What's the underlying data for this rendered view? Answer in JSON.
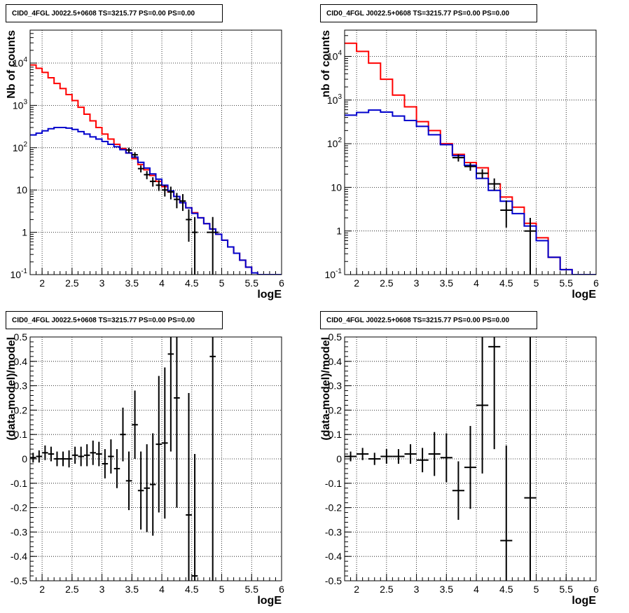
{
  "panel_title": "CID0_4FGL J0022.5+0608 TS=3215.77 PS=0.00 PS=0.00",
  "colors": {
    "model_total": "#ff0000",
    "model_bkg": "#0000cc",
    "data": "#000000",
    "grid": "#000000"
  },
  "chart_data": [
    {
      "type": "line",
      "title": "CID0_4FGL J0022.5+0608 TS=3215.77 PS=0.00 PS=0.00",
      "xlabel": "logE",
      "ylabel": "Nb of counts",
      "log_y": true,
      "xlim": [
        1.8,
        6.0
      ],
      "ylim": [
        0.1,
        60000
      ],
      "xticks": [
        "2",
        "2.5",
        "3",
        "3.5",
        "4",
        "4.5",
        "5",
        "5.5",
        "6"
      ],
      "yticks": [
        "10^-1",
        "1",
        "10",
        "10^2",
        "10^3",
        "10^4"
      ],
      "grid": true,
      "bin_edges": [
        1.8,
        1.9,
        2.0,
        2.1,
        2.2,
        2.3,
        2.4,
        2.5,
        2.6,
        2.7,
        2.8,
        2.9,
        3.0,
        3.1,
        3.2,
        3.3,
        3.4,
        3.5,
        3.6,
        3.7,
        3.8,
        3.9,
        4.0,
        4.1,
        4.2,
        4.3,
        4.4,
        4.5,
        4.6,
        4.7,
        4.8,
        4.9,
        5.0,
        5.1,
        5.2,
        5.3,
        5.4,
        5.5,
        5.6,
        5.7,
        5.8,
        5.9,
        6.0
      ],
      "series": [
        {
          "values": [
            9000,
            7500,
            6000,
            4500,
            3300,
            2500,
            1800,
            1300,
            900,
            620,
            430,
            300,
            210,
            160,
            120,
            95,
            75,
            55,
            40,
            30,
            22,
            16,
            12,
            9,
            7,
            5,
            3.8,
            2.9,
            2.2,
            1.6,
            1.2,
            0.9,
            0.65,
            0.45,
            0.32,
            0.22,
            0.15,
            0.11,
            0.1,
            0.1,
            0.1,
            0.1
          ]
        },
        {
          "values": [
            200,
            220,
            250,
            280,
            300,
            300,
            290,
            270,
            240,
            210,
            180,
            160,
            140,
            120,
            105,
            90,
            75,
            60,
            45,
            33,
            24,
            18,
            13,
            9.5,
            7,
            5,
            3.8,
            2.8,
            2.2,
            1.6,
            1.2,
            0.9,
            0.65,
            0.45,
            0.32,
            0.22,
            0.15,
            0.11,
            0.1,
            0.1,
            0.1,
            0.1
          ]
        }
      ],
      "points": [
        {
          "x": 3.45,
          "y": 88,
          "ylo": 75,
          "yhi": 100
        },
        {
          "x": 3.55,
          "y": 68,
          "ylo": 58,
          "yhi": 78
        },
        {
          "x": 3.65,
          "y": 32,
          "ylo": 26,
          "yhi": 38
        },
        {
          "x": 3.75,
          "y": 23,
          "ylo": 18,
          "yhi": 28
        },
        {
          "x": 3.85,
          "y": 16,
          "ylo": 12,
          "yhi": 20
        },
        {
          "x": 3.95,
          "y": 13,
          "ylo": 9.5,
          "yhi": 17
        },
        {
          "x": 4.05,
          "y": 10,
          "ylo": 7,
          "yhi": 13
        },
        {
          "x": 4.15,
          "y": 9,
          "ylo": 6,
          "yhi": 12
        },
        {
          "x": 4.25,
          "y": 6,
          "ylo": 3.7,
          "yhi": 8.5
        },
        {
          "x": 4.35,
          "y": 5.5,
          "ylo": 3.2,
          "yhi": 8
        },
        {
          "x": 4.45,
          "y": 2,
          "ylo": 0.6,
          "yhi": 3.5
        },
        {
          "x": 4.55,
          "y": 1,
          "ylo": 0.1,
          "yhi": 2.3
        },
        {
          "x": 4.85,
          "y": 1,
          "ylo": 0.1,
          "yhi": 2.3
        }
      ]
    },
    {
      "type": "line",
      "title": "CID0_4FGL J0022.5+0608 TS=3215.77 PS=0.00 PS=0.00",
      "xlabel": "logE",
      "ylabel": "nb of counts",
      "log_y": true,
      "xlim": [
        1.8,
        6.0
      ],
      "ylim": [
        0.1,
        40000
      ],
      "xticks": [
        "2",
        "2.5",
        "3",
        "3.5",
        "4",
        "4.5",
        "5",
        "5.5",
        "6"
      ],
      "yticks": [
        "10^-1",
        "1",
        "10",
        "10^2",
        "10^3",
        "10^4"
      ],
      "grid": true,
      "bin_edges": [
        1.8,
        2.0,
        2.2,
        2.4,
        2.6,
        2.8,
        3.0,
        3.2,
        3.4,
        3.6,
        3.8,
        4.0,
        4.2,
        4.4,
        4.6,
        4.8,
        5.0,
        5.2,
        5.4,
        5.6,
        5.8,
        6.0
      ],
      "series": [
        {
          "values": [
            20000,
            13000,
            7000,
            3000,
            1300,
            700,
            320,
            200,
            100,
            57,
            37,
            28,
            12,
            6,
            3.5,
            1.5,
            0.7,
            0.25,
            0.13,
            0.1,
            0.1
          ]
        },
        {
          "values": [
            450,
            520,
            590,
            530,
            430,
            340,
            250,
            160,
            95,
            53,
            32,
            16,
            8.5,
            4.8,
            2.5,
            1.3,
            0.6,
            0.25,
            0.13,
            0.1,
            0.1
          ]
        }
      ],
      "points": [
        {
          "x": 3.7,
          "y": 48,
          "ylo": 39,
          "yhi": 57
        },
        {
          "x": 3.9,
          "y": 30,
          "ylo": 24,
          "yhi": 36
        },
        {
          "x": 4.1,
          "y": 21,
          "ylo": 16,
          "yhi": 26
        },
        {
          "x": 4.3,
          "y": 12,
          "ylo": 8.5,
          "yhi": 16
        },
        {
          "x": 4.5,
          "y": 3,
          "ylo": 1.2,
          "yhi": 5
        },
        {
          "x": 4.9,
          "y": 1,
          "ylo": 0.1,
          "yhi": 2
        }
      ]
    },
    {
      "type": "scatter",
      "title": "CID0_4FGL J0022.5+0608 TS=3215.77 PS=0.00 PS=0.00",
      "xlabel": "logE",
      "ylabel": "(data-model)/model",
      "log_y": false,
      "xlim": [
        1.8,
        6.0
      ],
      "ylim": [
        -0.5,
        0.5
      ],
      "xticks": [
        "2",
        "2.5",
        "3",
        "3.5",
        "4",
        "4.5",
        "5",
        "5.5",
        "6"
      ],
      "yticks": [
        "-0.5",
        "-0.4",
        "-0.3",
        "-0.2",
        "-0.1",
        "0",
        "0.1",
        "0.2",
        "0.3",
        "0.4",
        "0.5"
      ],
      "grid": true,
      "points": [
        {
          "x": 1.85,
          "y": 0.005,
          "err": 0.02,
          "xerr": 0.05
        },
        {
          "x": 1.95,
          "y": 0.01,
          "err": 0.025,
          "xerr": 0.05
        },
        {
          "x": 2.05,
          "y": 0.025,
          "err": 0.03,
          "xerr": 0.05
        },
        {
          "x": 2.15,
          "y": 0.02,
          "err": 0.03,
          "xerr": 0.05
        },
        {
          "x": 2.25,
          "y": 0.0,
          "err": 0.03,
          "xerr": 0.05
        },
        {
          "x": 2.35,
          "y": 0.0,
          "err": 0.03,
          "xerr": 0.05
        },
        {
          "x": 2.45,
          "y": 0.0,
          "err": 0.035,
          "xerr": 0.05
        },
        {
          "x": 2.55,
          "y": 0.015,
          "err": 0.035,
          "xerr": 0.05
        },
        {
          "x": 2.65,
          "y": 0.01,
          "err": 0.04,
          "xerr": 0.05
        },
        {
          "x": 2.75,
          "y": 0.015,
          "err": 0.045,
          "xerr": 0.05
        },
        {
          "x": 2.85,
          "y": 0.025,
          "err": 0.05,
          "xerr": 0.05
        },
        {
          "x": 2.95,
          "y": 0.02,
          "err": 0.05,
          "xerr": 0.05
        },
        {
          "x": 3.05,
          "y": -0.02,
          "err": 0.06,
          "xerr": 0.05
        },
        {
          "x": 3.15,
          "y": 0.01,
          "err": 0.07,
          "xerr": 0.05
        },
        {
          "x": 3.25,
          "y": -0.04,
          "err": 0.08,
          "xerr": 0.05
        },
        {
          "x": 3.35,
          "y": 0.1,
          "err": 0.11,
          "xerr": 0.05
        },
        {
          "x": 3.45,
          "y": -0.09,
          "err": 0.12,
          "xerr": 0.05
        },
        {
          "x": 3.55,
          "y": 0.14,
          "err": 0.14,
          "xerr": 0.05
        },
        {
          "x": 3.65,
          "y": -0.13,
          "err": 0.16,
          "xerr": 0.05
        },
        {
          "x": 3.75,
          "y": -0.12,
          "err": 0.18,
          "xerr": 0.05
        },
        {
          "x": 3.85,
          "y": -0.105,
          "err": 0.21,
          "xerr": 0.05
        },
        {
          "x": 3.95,
          "y": 0.06,
          "err": 0.28,
          "xerr": 0.05
        },
        {
          "x": 4.05,
          "y": 0.065,
          "err": 0.31,
          "xerr": 0.05
        },
        {
          "x": 4.15,
          "y": 0.43,
          "err": 0.4,
          "xerr": 0.05
        },
        {
          "x": 4.25,
          "y": 0.25,
          "err": 0.45,
          "xerr": 0.05
        },
        {
          "x": 4.45,
          "y": -0.23,
          "err": 0.5,
          "xerr": 0.05
        },
        {
          "x": 4.55,
          "y": -0.48,
          "err": 0.5,
          "xerr": 0.05
        },
        {
          "x": 4.85,
          "y": 0.42,
          "err": 1.0,
          "xerr": 0.05
        }
      ]
    },
    {
      "type": "scatter",
      "title": "CID0_4FGL J0022.5+0608 TS=3215.77 PS=0.00 PS=0.00",
      "xlabel": "logE",
      "ylabel": "(data-model)/model",
      "log_y": false,
      "xlim": [
        1.8,
        6.0
      ],
      "ylim": [
        -0.5,
        0.5
      ],
      "xticks": [
        "2",
        "2.5",
        "3",
        "3.5",
        "4",
        "4.5",
        "5",
        "5.5",
        "6"
      ],
      "yticks": [
        "-0.5",
        "-0.4",
        "-0.3",
        "-0.2",
        "-0.1",
        "0",
        "0.1",
        "0.2",
        "0.3",
        "0.4",
        "0.5"
      ],
      "grid": true,
      "points": [
        {
          "x": 1.9,
          "y": 0.01,
          "err": 0.02,
          "xerr": 0.1
        },
        {
          "x": 2.1,
          "y": 0.02,
          "err": 0.025,
          "xerr": 0.1
        },
        {
          "x": 2.3,
          "y": 0.0,
          "err": 0.025,
          "xerr": 0.1
        },
        {
          "x": 2.5,
          "y": 0.01,
          "err": 0.03,
          "xerr": 0.1
        },
        {
          "x": 2.7,
          "y": 0.01,
          "err": 0.03,
          "xerr": 0.1
        },
        {
          "x": 2.9,
          "y": 0.02,
          "err": 0.04,
          "xerr": 0.1
        },
        {
          "x": 3.1,
          "y": -0.005,
          "err": 0.05,
          "xerr": 0.1
        },
        {
          "x": 3.3,
          "y": 0.02,
          "err": 0.09,
          "xerr": 0.1
        },
        {
          "x": 3.5,
          "y": 0.005,
          "err": 0.1,
          "xerr": 0.1
        },
        {
          "x": 3.7,
          "y": -0.13,
          "err": 0.12,
          "xerr": 0.1
        },
        {
          "x": 3.9,
          "y": -0.035,
          "err": 0.17,
          "xerr": 0.1
        },
        {
          "x": 4.1,
          "y": 0.22,
          "err": 0.28,
          "xerr": 0.1
        },
        {
          "x": 4.3,
          "y": 0.46,
          "err": 0.42,
          "xerr": 0.1
        },
        {
          "x": 4.5,
          "y": -0.335,
          "err": 0.39,
          "xerr": 0.1
        },
        {
          "x": 4.9,
          "y": -0.16,
          "err": 1.0,
          "xerr": 0.1
        }
      ]
    }
  ]
}
